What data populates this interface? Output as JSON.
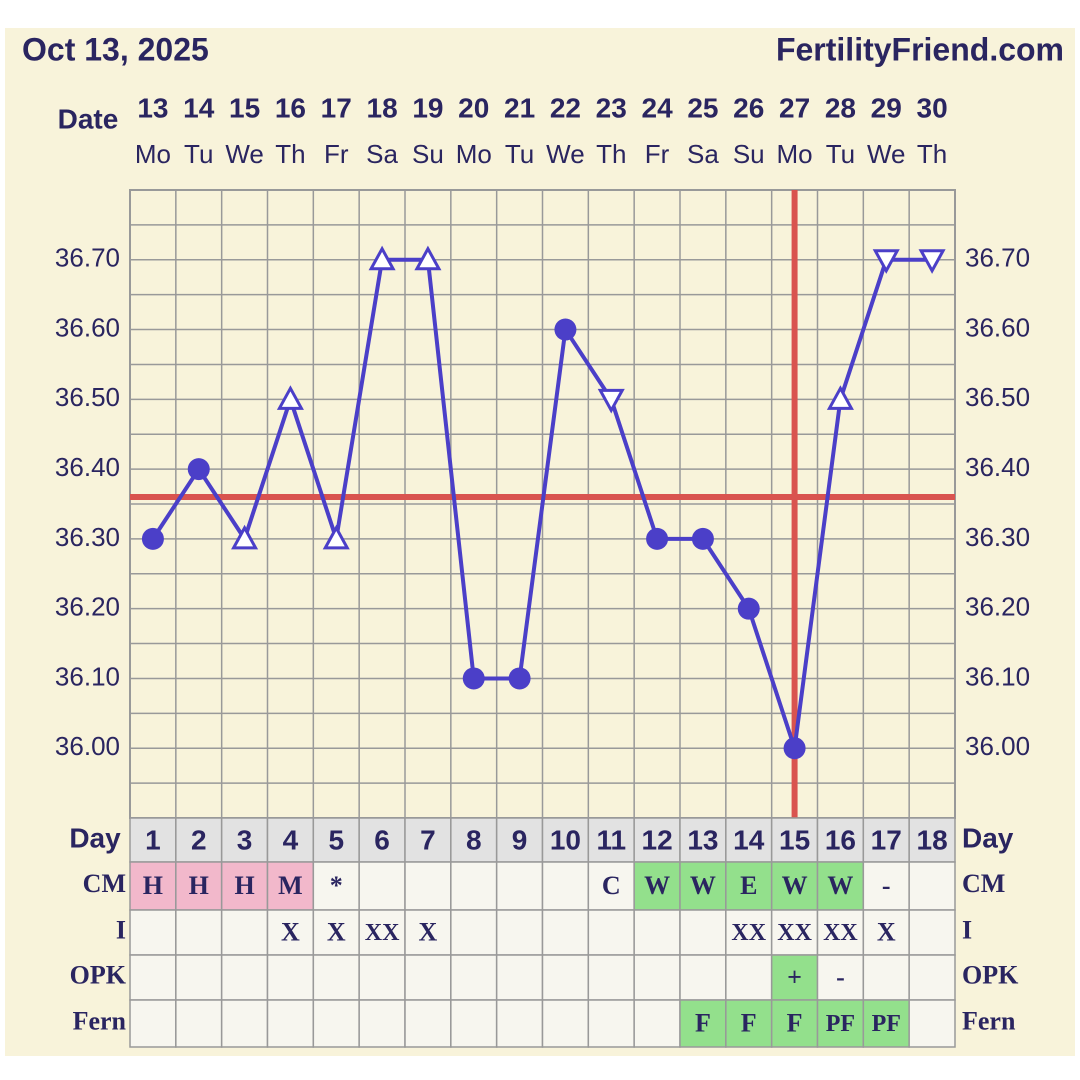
{
  "chart_data": {
    "type": "line",
    "title": "Oct 13, 2025",
    "site": "FertilityFriend.com",
    "date_label": "Date",
    "day_label": "Day",
    "dates": [
      13,
      14,
      15,
      16,
      17,
      18,
      19,
      20,
      21,
      22,
      23,
      24,
      25,
      26,
      27,
      28,
      29,
      30
    ],
    "weekdays": [
      "Mo",
      "Tu",
      "We",
      "Th",
      "Fr",
      "Sa",
      "Su",
      "Mo",
      "Tu",
      "We",
      "Th",
      "Fr",
      "Sa",
      "Su",
      "Mo",
      "Tu",
      "We",
      "Th"
    ],
    "days": [
      1,
      2,
      3,
      4,
      5,
      6,
      7,
      8,
      9,
      10,
      11,
      12,
      13,
      14,
      15,
      16,
      17,
      18
    ],
    "values": [
      36.3,
      36.4,
      36.3,
      36.5,
      36.3,
      36.7,
      36.7,
      36.1,
      36.1,
      36.6,
      36.5,
      36.3,
      36.3,
      36.2,
      36.0,
      36.5,
      36.7,
      36.7
    ],
    "markers": [
      "circle",
      "circle",
      "triangle-up",
      "triangle-up",
      "triangle-up",
      "triangle-up",
      "triangle-up",
      "circle",
      "circle",
      "circle",
      "triangle-down",
      "circle",
      "circle",
      "circle",
      "circle",
      "triangle-up",
      "triangle-down",
      "triangle-down"
    ],
    "color": "#4b3fc8",
    "ylim": [
      35.9,
      36.8
    ],
    "yticks": [
      {
        "value": 36.0,
        "label": "36.00"
      },
      {
        "value": 36.1,
        "label": "36.10"
      },
      {
        "value": 36.2,
        "label": "36.20"
      },
      {
        "value": 36.3,
        "label": "36.30"
      },
      {
        "value": 36.4,
        "label": "36.40"
      },
      {
        "value": 36.5,
        "label": "36.50"
      },
      {
        "value": 36.6,
        "label": "36.60"
      },
      {
        "value": 36.7,
        "label": "36.70"
      }
    ],
    "minor_yticks": [
      35.95,
      36.05,
      36.15,
      36.25,
      36.35,
      36.45,
      36.55,
      36.65,
      36.75
    ],
    "coverline": 36.36,
    "ovulation_day": 15,
    "reference_color": "#d9534f",
    "rows": [
      {
        "label": "CM",
        "cells": [
          "H",
          "H",
          "H",
          "M",
          "*",
          null,
          null,
          null,
          null,
          null,
          "C",
          "W",
          "W",
          "E",
          "W",
          "W",
          "-",
          null
        ],
        "colors": [
          "#f2b8cb",
          "#f2b8cb",
          "#f2b8cb",
          "#f2b8cb",
          null,
          null,
          null,
          null,
          null,
          null,
          null,
          "#93e08c",
          "#93e08c",
          "#93e08c",
          "#93e08c",
          "#93e08c",
          null,
          null
        ]
      },
      {
        "label": "I",
        "cells": [
          null,
          null,
          null,
          "X",
          "X",
          "XX",
          "X",
          null,
          null,
          null,
          null,
          null,
          null,
          "XX",
          "XX",
          "XX",
          "X",
          null
        ],
        "colors": [
          null,
          null,
          null,
          null,
          null,
          null,
          null,
          null,
          null,
          null,
          null,
          null,
          null,
          null,
          null,
          null,
          null,
          null
        ]
      },
      {
        "label": "OPK",
        "cells": [
          null,
          null,
          null,
          null,
          null,
          null,
          null,
          null,
          null,
          null,
          null,
          null,
          null,
          null,
          "+",
          "-",
          null,
          null
        ],
        "colors": [
          null,
          null,
          null,
          null,
          null,
          null,
          null,
          null,
          null,
          null,
          null,
          null,
          null,
          null,
          "#93e08c",
          null,
          null,
          null
        ]
      },
      {
        "label": "Fern",
        "cells": [
          null,
          null,
          null,
          null,
          null,
          null,
          null,
          null,
          null,
          null,
          null,
          null,
          "F",
          "F",
          "F",
          "PF",
          "PF",
          null
        ],
        "colors": [
          null,
          null,
          null,
          null,
          null,
          null,
          null,
          null,
          null,
          null,
          null,
          null,
          "#93e08c",
          "#93e08c",
          "#93e08c",
          "#93e08c",
          "#93e08c",
          null
        ]
      }
    ]
  }
}
